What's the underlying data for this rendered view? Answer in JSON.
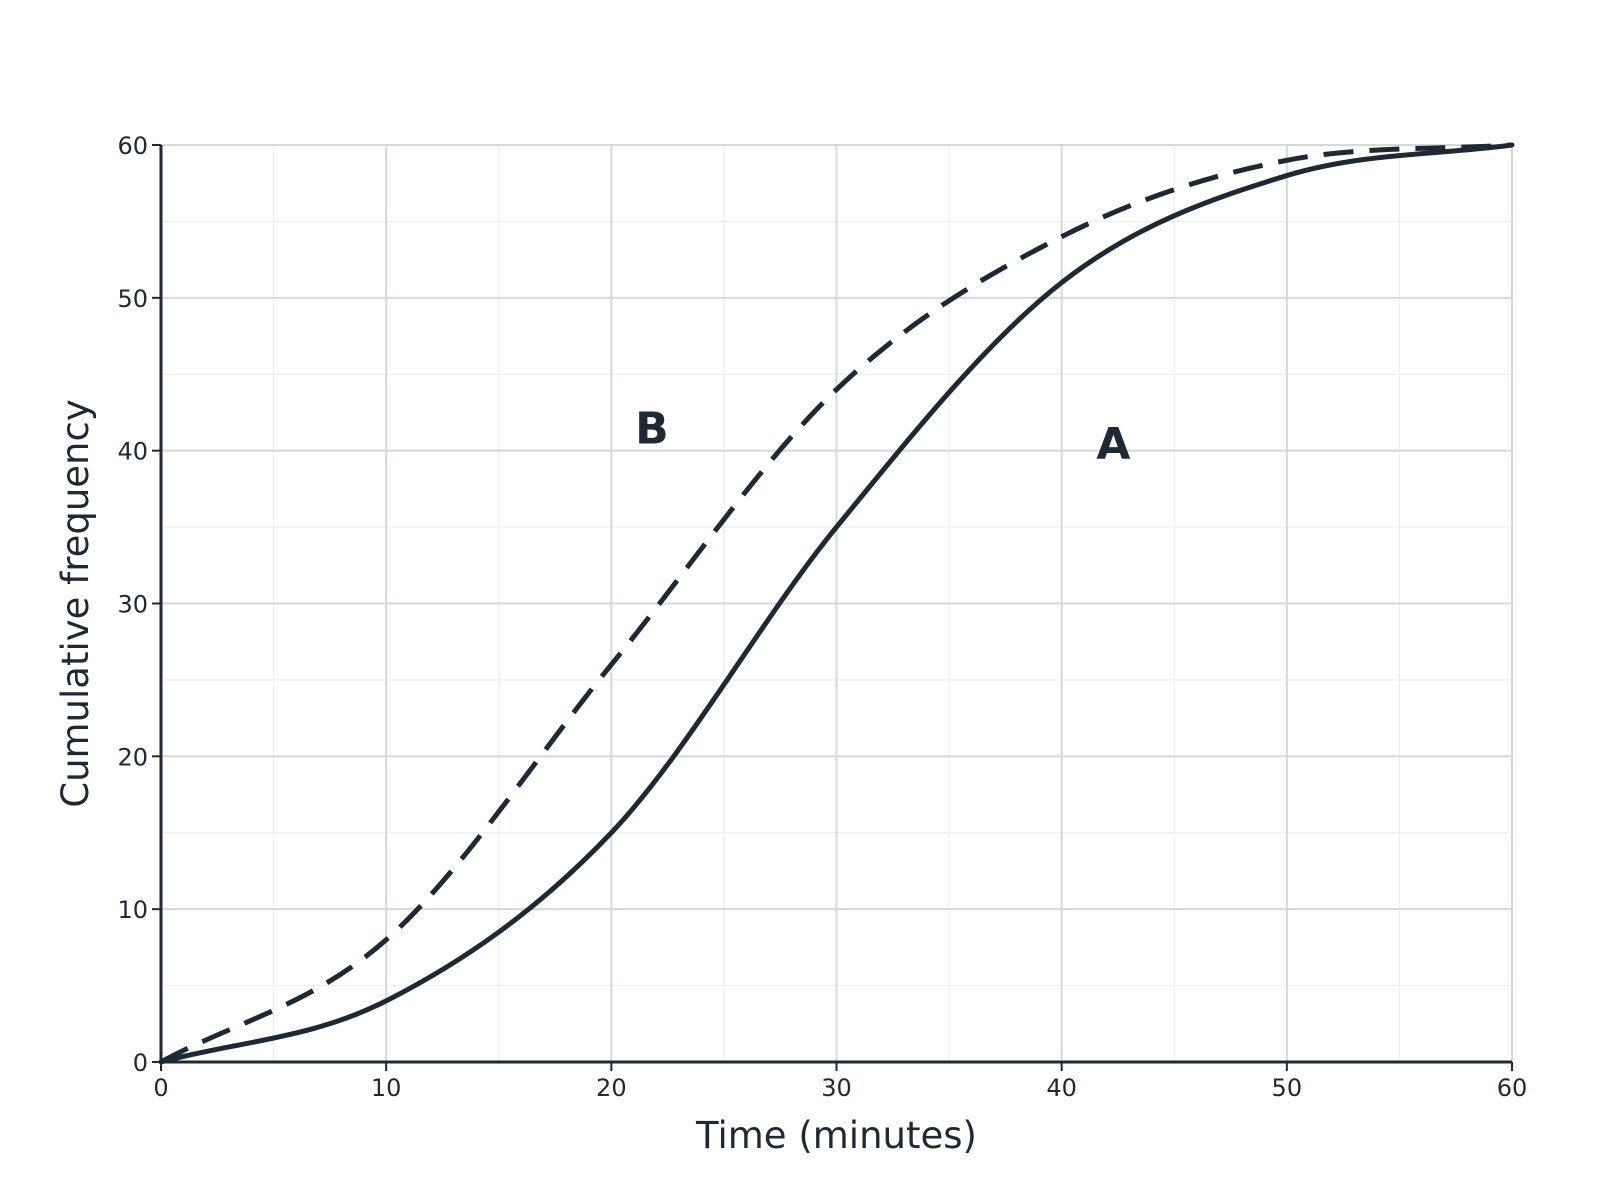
{
  "chart_data": {
    "type": "line",
    "title": "",
    "xlabel": "Time (minutes)",
    "ylabel": "Cumulative frequency",
    "xlim": [
      0,
      60
    ],
    "ylim": [
      0,
      60
    ],
    "x_ticks": [
      0,
      10,
      20,
      30,
      40,
      50,
      60
    ],
    "y_ticks": [
      0,
      10,
      20,
      30,
      40,
      50,
      60
    ],
    "grid": {
      "major": true,
      "minor": true
    },
    "legend": "none",
    "colors": {
      "line": "#1f2933",
      "axis": "#1f2933",
      "major_grid": "#d5d8dd",
      "minor_grid": "#eceef1"
    },
    "series": [
      {
        "name": "A",
        "style": "solid",
        "x": [
          0,
          10,
          20,
          30,
          40,
          50,
          60
        ],
        "y": [
          0,
          4,
          15,
          35,
          51,
          58,
          60
        ]
      },
      {
        "name": "B",
        "style": "dashed",
        "x": [
          0,
          10,
          20,
          30,
          40,
          50,
          60
        ],
        "y": [
          0,
          8,
          26,
          44,
          54,
          59,
          60
        ]
      }
    ]
  }
}
